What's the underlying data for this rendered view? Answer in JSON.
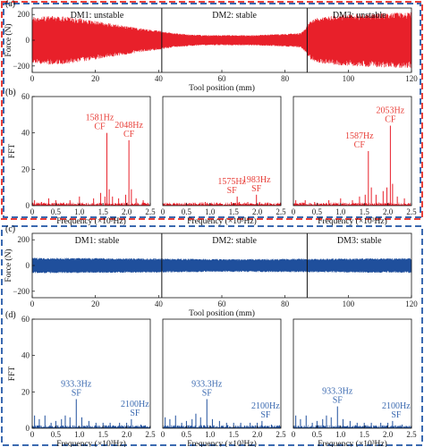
{
  "colors": {
    "red_signal": "#e8202a",
    "blue_signal": "#1f4f9c",
    "red_annotation": "#e8403a",
    "blue_annotation": "#3a69b0",
    "red_border": "#e8403a",
    "blue_border": "#3a69b0"
  },
  "chart_data": [
    {
      "type": "line",
      "panel_label": "(a)",
      "xlabel": "Tool position (mm)",
      "ylabel": "Force (N)",
      "xlim": [
        0,
        120
      ],
      "ylim": [
        -250,
        250
      ],
      "x_ticks": [
        0,
        20,
        40,
        60,
        80,
        100,
        120
      ],
      "y_ticks": [
        -200,
        0,
        200
      ],
      "segment_boundaries": [
        41,
        87
      ],
      "segments": [
        "DM1: unstable",
        "DM2: stable",
        "DM3: unstable"
      ],
      "series": [
        {
          "color": "red",
          "envelope_x": [
            0,
            5,
            10,
            15,
            20,
            25,
            30,
            35,
            40,
            45,
            50,
            55,
            60,
            65,
            70,
            75,
            80,
            85,
            88,
            90,
            95,
            100,
            105,
            110,
            115,
            120
          ],
          "envelope_amplitude": [
            180,
            190,
            185,
            170,
            150,
            130,
            110,
            90,
            75,
            55,
            45,
            40,
            40,
            40,
            40,
            45,
            50,
            55,
            150,
            175,
            190,
            200,
            205,
            210,
            215,
            220
          ]
        }
      ]
    },
    {
      "type": "bar",
      "panel_label": "(b)",
      "ylabel": "FFT",
      "ylim": [
        0,
        60
      ],
      "y_ticks": [
        0,
        20,
        40,
        60
      ],
      "subplots": [
        {
          "xlabel": "Frequency (×10³Hz)",
          "xlim": [
            0,
            2.5
          ],
          "x_ticks": [
            "0",
            "0.5",
            "1.0",
            "1.5",
            "2.0",
            "2.5"
          ],
          "peaks": [
            {
              "x": 0.05,
              "y": 3
            },
            {
              "x": 0.2,
              "y": 2
            },
            {
              "x": 0.35,
              "y": 4
            },
            {
              "x": 0.5,
              "y": 3
            },
            {
              "x": 0.8,
              "y": 3
            },
            {
              "x": 1.0,
              "y": 5
            },
            {
              "x": 1.3,
              "y": 4
            },
            {
              "x": 1.45,
              "y": 7
            },
            {
              "x": 1.54,
              "y": 5
            },
            {
              "x": 1.581,
              "y": 40
            },
            {
              "x": 1.63,
              "y": 9
            },
            {
              "x": 1.7,
              "y": 5
            },
            {
              "x": 1.83,
              "y": 4
            },
            {
              "x": 1.98,
              "y": 6
            },
            {
              "x": 2.048,
              "y": 36
            },
            {
              "x": 2.1,
              "y": 9
            },
            {
              "x": 2.2,
              "y": 4
            },
            {
              "x": 2.35,
              "y": 3
            }
          ],
          "annotations": [
            {
              "x": 1.581,
              "y": 40,
              "label": [
                "1581Hz",
                "CF"
              ]
            },
            {
              "x": 2.048,
              "y": 36,
              "label": [
                "2048Hz",
                "CF"
              ]
            }
          ]
        },
        {
          "xlabel": "Frequency (×10³Hz)",
          "xlim": [
            0,
            2.5
          ],
          "x_ticks": [
            "0",
            "0.5",
            "1.0",
            "1.5",
            "2.0",
            "2.5"
          ],
          "peaks": [
            {
              "x": 0.1,
              "y": 1
            },
            {
              "x": 0.3,
              "y": 1
            },
            {
              "x": 0.6,
              "y": 1
            },
            {
              "x": 0.9,
              "y": 2
            },
            {
              "x": 1.2,
              "y": 1
            },
            {
              "x": 1.45,
              "y": 2
            },
            {
              "x": 1.575,
              "y": 5
            },
            {
              "x": 1.62,
              "y": 2
            },
            {
              "x": 1.8,
              "y": 2
            },
            {
              "x": 1.983,
              "y": 6
            },
            {
              "x": 2.05,
              "y": 2
            },
            {
              "x": 2.3,
              "y": 1
            }
          ],
          "annotations": [
            {
              "x": 1.575,
              "y": 5,
              "label": [
                "1575Hz",
                "SF"
              ]
            },
            {
              "x": 1.983,
              "y": 6,
              "label": [
                "1983Hz",
                "SF"
              ]
            }
          ]
        },
        {
          "xlabel": "Frequency (×10³Hz)",
          "xlim": [
            0,
            2.5
          ],
          "x_ticks": [
            "0",
            "0.5",
            "1.0",
            "1.5",
            "2.0",
            "2.5"
          ],
          "peaks": [
            {
              "x": 0.05,
              "y": 3
            },
            {
              "x": 0.25,
              "y": 3
            },
            {
              "x": 0.45,
              "y": 2
            },
            {
              "x": 0.75,
              "y": 3
            },
            {
              "x": 1.0,
              "y": 4
            },
            {
              "x": 1.25,
              "y": 3
            },
            {
              "x": 1.4,
              "y": 5
            },
            {
              "x": 1.52,
              "y": 6
            },
            {
              "x": 1.587,
              "y": 30
            },
            {
              "x": 1.65,
              "y": 10
            },
            {
              "x": 1.75,
              "y": 6
            },
            {
              "x": 1.9,
              "y": 8
            },
            {
              "x": 1.98,
              "y": 10
            },
            {
              "x": 2.053,
              "y": 44
            },
            {
              "x": 2.1,
              "y": 12
            },
            {
              "x": 2.2,
              "y": 5
            },
            {
              "x": 2.35,
              "y": 4
            }
          ],
          "annotations": [
            {
              "x": 1.587,
              "y": 30,
              "label": [
                "1587Hz",
                "CF"
              ]
            },
            {
              "x": 2.053,
              "y": 44,
              "label": [
                "2053Hz",
                "CF"
              ]
            }
          ]
        }
      ]
    },
    {
      "type": "line",
      "panel_label": "(c)",
      "xlabel": "Tool position (mm)",
      "ylabel": "Force (N)",
      "xlim": [
        0,
        120
      ],
      "ylim": [
        -250,
        250
      ],
      "x_ticks": [
        0,
        20,
        40,
        60,
        80,
        100,
        120
      ],
      "y_ticks": [
        -200,
        0,
        200
      ],
      "segment_boundaries": [
        41,
        87
      ],
      "segments": [
        "DM1: stable",
        "DM2: stable",
        "DM3: stable"
      ],
      "series": [
        {
          "color": "blue",
          "envelope_x": [
            0,
            20,
            40,
            60,
            80,
            100,
            120
          ],
          "envelope_amplitude": [
            60,
            58,
            55,
            50,
            52,
            55,
            58
          ]
        }
      ]
    },
    {
      "type": "bar",
      "panel_label": "(d)",
      "ylabel": "FFT",
      "ylim": [
        0,
        60
      ],
      "y_ticks": [
        0,
        20,
        40,
        60
      ],
      "subplots": [
        {
          "xlabel": "Frequency (×10³Hz)",
          "xlim": [
            0,
            2.5
          ],
          "x_ticks": [
            "0",
            "0.5",
            "1.0",
            "1.5",
            "2.0",
            "2.5"
          ],
          "peaks": [
            {
              "x": 0.05,
              "y": 7
            },
            {
              "x": 0.15,
              "y": 5
            },
            {
              "x": 0.27,
              "y": 7
            },
            {
              "x": 0.4,
              "y": 3
            },
            {
              "x": 0.5,
              "y": 4
            },
            {
              "x": 0.62,
              "y": 5
            },
            {
              "x": 0.7,
              "y": 7
            },
            {
              "x": 0.8,
              "y": 6
            },
            {
              "x": 0.933,
              "y": 16
            },
            {
              "x": 1.05,
              "y": 6
            },
            {
              "x": 1.2,
              "y": 4
            },
            {
              "x": 1.35,
              "y": 3
            },
            {
              "x": 1.5,
              "y": 3
            },
            {
              "x": 1.65,
              "y": 3
            },
            {
              "x": 1.85,
              "y": 3
            },
            {
              "x": 2.0,
              "y": 3
            },
            {
              "x": 2.1,
              "y": 5
            },
            {
              "x": 2.3,
              "y": 2
            }
          ],
          "annotations": [
            {
              "x": 0.933,
              "y": 16,
              "label": [
                "933.3Hz",
                "SF"
              ]
            },
            {
              "x": 2.1,
              "y": 5,
              "label": [
                "2100Hz",
                "SF"
              ]
            }
          ]
        },
        {
          "xlabel": "Frequency (×10³Hz)",
          "xlim": [
            0,
            2.5
          ],
          "x_ticks": [
            "0",
            "0.5",
            "1.0",
            "1.5",
            "2.0",
            "2.5"
          ],
          "peaks": [
            {
              "x": 0.05,
              "y": 6
            },
            {
              "x": 0.15,
              "y": 5
            },
            {
              "x": 0.27,
              "y": 7
            },
            {
              "x": 0.4,
              "y": 3
            },
            {
              "x": 0.5,
              "y": 4
            },
            {
              "x": 0.62,
              "y": 5
            },
            {
              "x": 0.7,
              "y": 8
            },
            {
              "x": 0.8,
              "y": 6
            },
            {
              "x": 0.933,
              "y": 16
            },
            {
              "x": 1.05,
              "y": 5
            },
            {
              "x": 1.2,
              "y": 4
            },
            {
              "x": 1.35,
              "y": 3
            },
            {
              "x": 1.5,
              "y": 3
            },
            {
              "x": 1.65,
              "y": 3
            },
            {
              "x": 1.85,
              "y": 3
            },
            {
              "x": 2.0,
              "y": 3
            },
            {
              "x": 2.1,
              "y": 4
            },
            {
              "x": 2.3,
              "y": 2
            }
          ],
          "annotations": [
            {
              "x": 0.933,
              "y": 16,
              "label": [
                "933.3Hz",
                "SF"
              ]
            },
            {
              "x": 2.1,
              "y": 4,
              "label": [
                "2100Hz",
                "SF"
              ]
            }
          ]
        },
        {
          "xlabel": "Frequency (×10³Hz)",
          "xlim": [
            0,
            2.5
          ],
          "x_ticks": [
            "0",
            "0.5",
            "1.0",
            "1.5",
            "2.0",
            "2.5"
          ],
          "peaks": [
            {
              "x": 0.05,
              "y": 7
            },
            {
              "x": 0.15,
              "y": 5
            },
            {
              "x": 0.27,
              "y": 7
            },
            {
              "x": 0.4,
              "y": 3
            },
            {
              "x": 0.5,
              "y": 4
            },
            {
              "x": 0.62,
              "y": 5
            },
            {
              "x": 0.7,
              "y": 7
            },
            {
              "x": 0.8,
              "y": 6
            },
            {
              "x": 0.933,
              "y": 12
            },
            {
              "x": 1.05,
              "y": 5
            },
            {
              "x": 1.2,
              "y": 4
            },
            {
              "x": 1.35,
              "y": 3
            },
            {
              "x": 1.5,
              "y": 3
            },
            {
              "x": 1.65,
              "y": 3
            },
            {
              "x": 1.85,
              "y": 3
            },
            {
              "x": 2.0,
              "y": 3
            },
            {
              "x": 2.1,
              "y": 4
            },
            {
              "x": 2.3,
              "y": 2
            }
          ],
          "annotations": [
            {
              "x": 0.933,
              "y": 12,
              "label": [
                "933.3Hz",
                "SF"
              ]
            },
            {
              "x": 2.1,
              "y": 4,
              "label": [
                "2100Hz",
                "SF"
              ]
            }
          ]
        }
      ]
    }
  ]
}
